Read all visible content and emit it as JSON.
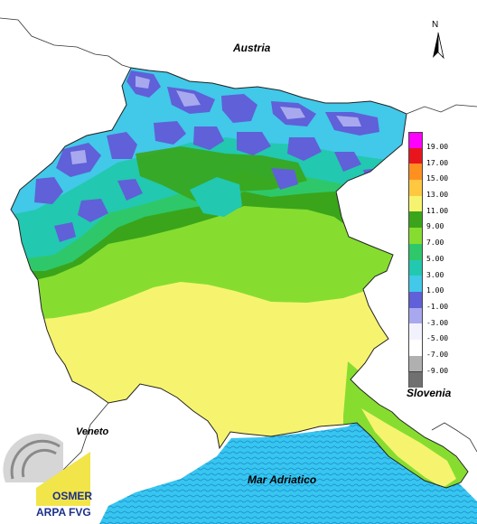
{
  "map": {
    "labels": {
      "north": "N",
      "austria": "Austria",
      "slovenia": "Slovenia",
      "veneto": "Veneto",
      "sea": "Mar Adriatico"
    },
    "legend": [
      {
        "label": "19.00",
        "color": "#ff00ff"
      },
      {
        "label": "17.00",
        "color": "#e8161c"
      },
      {
        "label": "15.00",
        "color": "#ff9020"
      },
      {
        "label": "13.00",
        "color": "#ffc840"
      },
      {
        "label": "11.00",
        "color": "#f6f46e"
      },
      {
        "label": "9.00",
        "color": "#3aa51a"
      },
      {
        "label": "7.00",
        "color": "#86dd30"
      },
      {
        "label": "5.00",
        "color": "#2ec86a"
      },
      {
        "label": "3.00",
        "color": "#22c8b0"
      },
      {
        "label": "1.00",
        "color": "#42c8e8"
      },
      {
        "label": "-1.00",
        "color": "#6060d8"
      },
      {
        "label": "-3.00",
        "color": "#a8a8ee"
      },
      {
        "label": "-5.00",
        "color": "#f2f2ff"
      },
      {
        "label": "-7.00",
        "color": "#ffffff"
      },
      {
        "label": "-9.00",
        "color": "#b0b0b0"
      },
      {
        "label": "",
        "color": "#707070"
      }
    ],
    "logo": {
      "line1": "OSMER",
      "line2": "ARPA FVG"
    }
  }
}
